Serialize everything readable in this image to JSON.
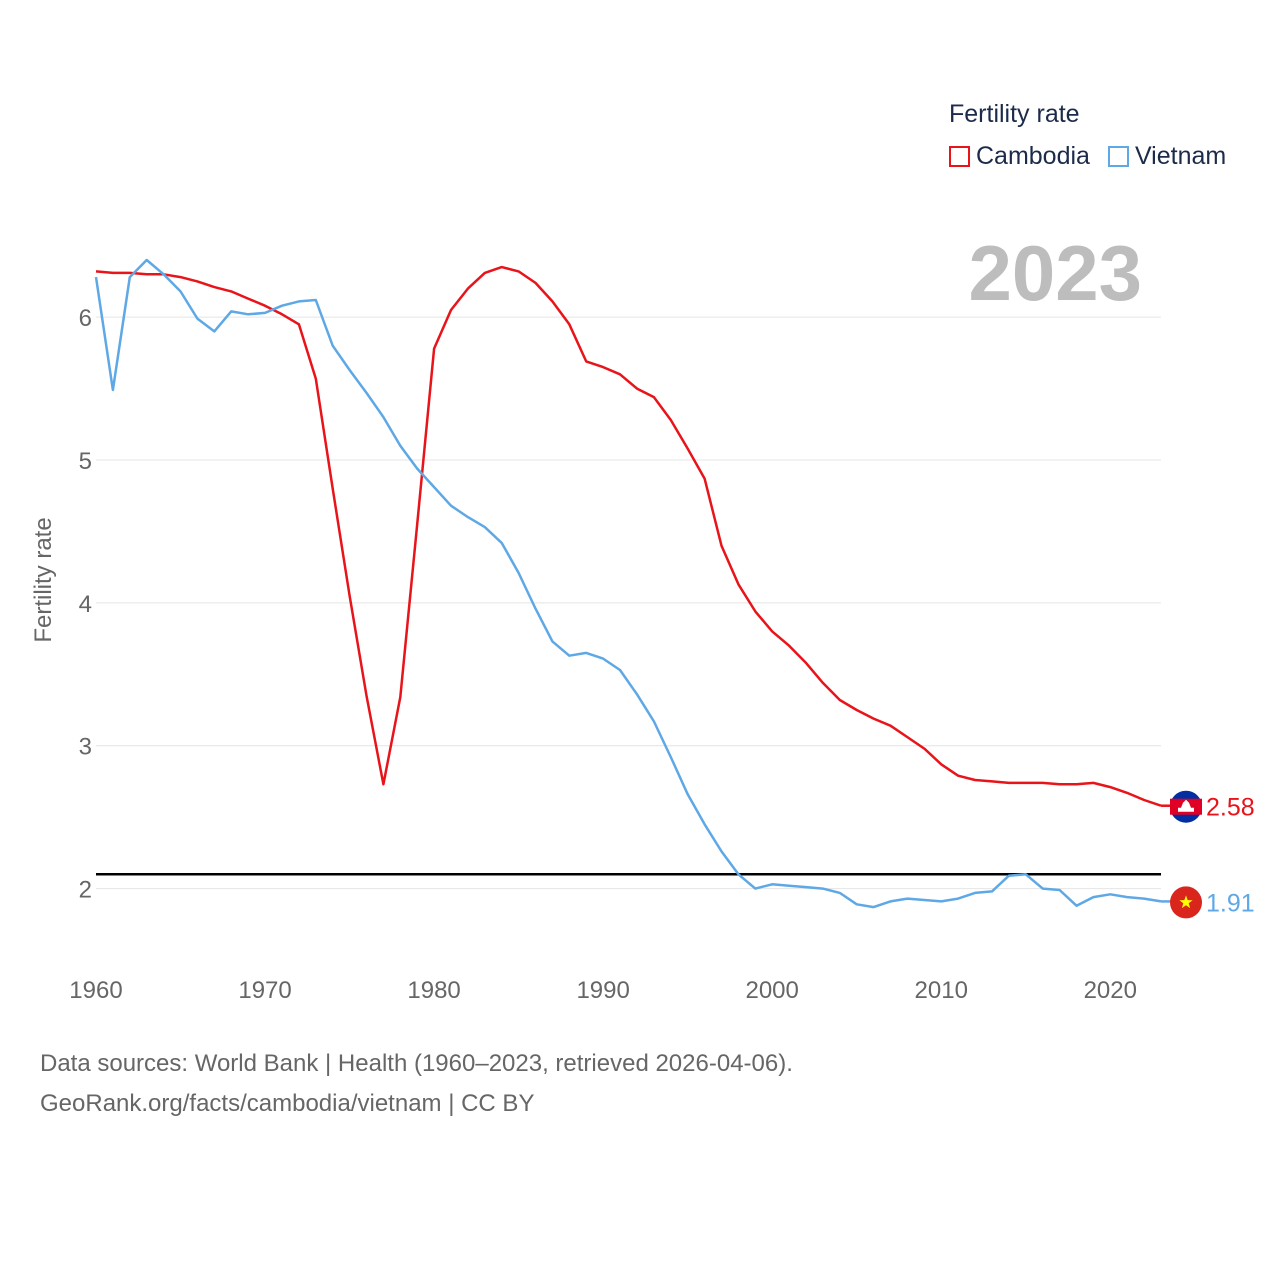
{
  "chart_data": {
    "type": "line",
    "title": "",
    "xlabel": "",
    "ylabel": "Fertility rate",
    "xlim": [
      1960,
      2023
    ],
    "ylim": [
      1.5,
      7.1
    ],
    "yticks": [
      2,
      3,
      4,
      5,
      6
    ],
    "xticks": [
      1960,
      1970,
      1980,
      1990,
      2000,
      2010,
      2020
    ],
    "grid": true,
    "legend_title": "Fertility rate",
    "legend_position": "top-right",
    "year_label": "2023",
    "reference_line": 2.1,
    "x": [
      1960,
      1961,
      1962,
      1963,
      1964,
      1965,
      1966,
      1967,
      1968,
      1969,
      1970,
      1971,
      1972,
      1973,
      1974,
      1975,
      1976,
      1977,
      1978,
      1979,
      1980,
      1981,
      1982,
      1983,
      1984,
      1985,
      1986,
      1987,
      1988,
      1989,
      1990,
      1991,
      1992,
      1993,
      1994,
      1995,
      1996,
      1997,
      1998,
      1999,
      2000,
      2001,
      2002,
      2003,
      2004,
      2005,
      2006,
      2007,
      2008,
      2009,
      2010,
      2011,
      2012,
      2013,
      2014,
      2015,
      2016,
      2017,
      2018,
      2019,
      2020,
      2021,
      2022,
      2023
    ],
    "series": [
      {
        "name": "Cambodia",
        "color": "#e8141a",
        "end_label": "2.58",
        "values": [
          6.32,
          6.31,
          6.31,
          6.3,
          6.3,
          6.28,
          6.25,
          6.21,
          6.18,
          6.13,
          6.08,
          6.02,
          5.95,
          5.57,
          4.8,
          4.05,
          3.35,
          2.73,
          3.34,
          4.55,
          5.78,
          6.05,
          6.2,
          6.31,
          6.35,
          6.32,
          6.24,
          6.11,
          5.95,
          5.69,
          5.65,
          5.6,
          5.5,
          5.44,
          5.28,
          5.08,
          4.87,
          4.4,
          4.13,
          3.94,
          3.8,
          3.7,
          3.58,
          3.44,
          3.32,
          3.25,
          3.19,
          3.14,
          3.06,
          2.98,
          2.87,
          2.79,
          2.76,
          2.75,
          2.74,
          2.74,
          2.74,
          2.73,
          2.73,
          2.74,
          2.71,
          2.67,
          2.62,
          2.58
        ]
      },
      {
        "name": "Vietnam",
        "color": "#5ea8e6",
        "end_label": "1.91",
        "values": [
          6.28,
          5.49,
          6.28,
          6.4,
          6.3,
          6.18,
          5.99,
          5.9,
          6.04,
          6.02,
          6.03,
          6.08,
          6.11,
          6.12,
          5.8,
          5.63,
          5.47,
          5.3,
          5.1,
          4.94,
          4.81,
          4.68,
          4.6,
          4.53,
          4.42,
          4.21,
          3.96,
          3.73,
          3.63,
          3.65,
          3.61,
          3.53,
          3.36,
          3.17,
          2.92,
          2.66,
          2.45,
          2.26,
          2.1,
          2.0,
          2.03,
          2.02,
          2.01,
          2.0,
          1.97,
          1.89,
          1.87,
          1.91,
          1.93,
          1.92,
          1.91,
          1.93,
          1.97,
          1.98,
          2.09,
          2.1,
          2.0,
          1.99,
          1.88,
          1.94,
          1.96,
          1.94,
          1.93,
          1.91
        ]
      }
    ]
  },
  "sources": {
    "line1": "Data sources: World Bank | Health (1960–2023, retrieved 2026-04-06).",
    "line2": "GeoRank.org/facts/cambodia/vietnam | CC BY"
  }
}
